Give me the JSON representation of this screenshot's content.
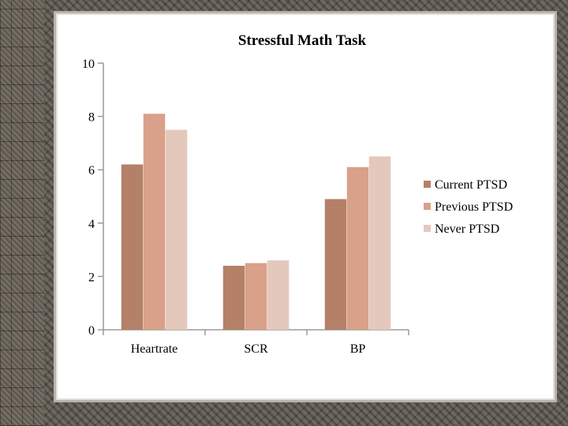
{
  "colors": {
    "current": "#b48068",
    "previous": "#d9a08a",
    "never": "#e5c8bc",
    "axis": "#9a9a9a"
  },
  "chart_data": {
    "type": "bar",
    "title": "Stressful Math Task",
    "categories": [
      "Heartrate",
      "SCR",
      "BP"
    ],
    "series": [
      {
        "name": "Current PTSD",
        "values": [
          6.2,
          2.4,
          4.9
        ]
      },
      {
        "name": "Previous PTSD",
        "values": [
          8.1,
          2.5,
          6.1
        ]
      },
      {
        "name": "Never PTSD",
        "values": [
          7.5,
          2.6,
          6.5
        ]
      }
    ],
    "yticks": [
      "0",
      "2",
      "4",
      "6",
      "8",
      "10"
    ],
    "ylim": [
      0,
      10
    ],
    "xlabel": "",
    "ylabel": "",
    "legend_position": "right"
  }
}
